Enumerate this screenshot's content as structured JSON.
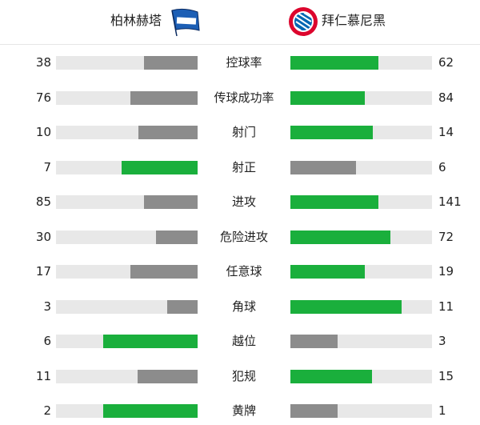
{
  "header": {
    "home": {
      "name": "柏林赫塔",
      "logo": "hertha-flag-logo"
    },
    "away": {
      "name": "拜仁慕尼黑",
      "logo": "bayern-crest-logo"
    }
  },
  "colors": {
    "leader": "#1aaf3c",
    "trailer": "#8c8c8c",
    "track": "#e8e8e8"
  },
  "stats": [
    {
      "label": "控球率",
      "home": 38,
      "away": 62
    },
    {
      "label": "传球成功率",
      "home": 76,
      "away": 84
    },
    {
      "label": "射门",
      "home": 10,
      "away": 14
    },
    {
      "label": "射正",
      "home": 7,
      "away": 6
    },
    {
      "label": "进攻",
      "home": 85,
      "away": 141
    },
    {
      "label": "危险进攻",
      "home": 30,
      "away": 72
    },
    {
      "label": "任意球",
      "home": 17,
      "away": 19
    },
    {
      "label": "角球",
      "home": 3,
      "away": 11
    },
    {
      "label": "越位",
      "home": 6,
      "away": 3
    },
    {
      "label": "犯规",
      "home": 11,
      "away": 15
    },
    {
      "label": "黄牌",
      "home": 2,
      "away": 1
    }
  ]
}
